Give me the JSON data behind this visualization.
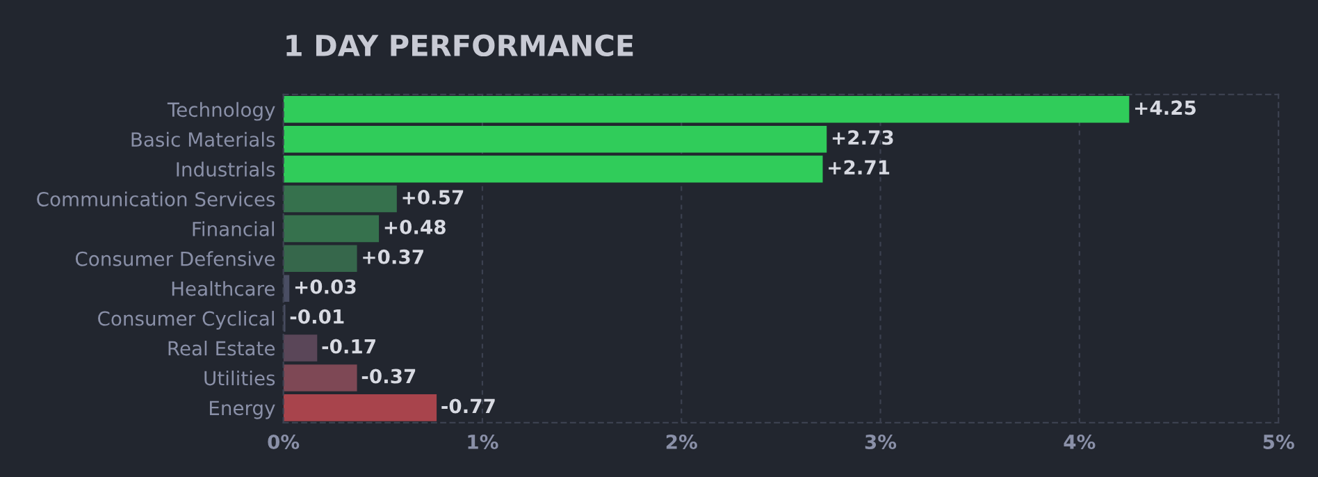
{
  "chart_data": {
    "type": "bar",
    "orientation": "horizontal",
    "title": "1 DAY PERFORMANCE",
    "categories": [
      "Technology",
      "Basic Materials",
      "Industrials",
      "Communication Services",
      "Financial",
      "Consumer Defensive",
      "Healthcare",
      "Consumer Cyclical",
      "Real Estate",
      "Utilities",
      "Energy"
    ],
    "values": [
      4.25,
      2.73,
      2.71,
      0.57,
      0.48,
      0.37,
      0.03,
      -0.01,
      -0.17,
      -0.37,
      -0.77
    ],
    "base": [
      0,
      0,
      0,
      0,
      0,
      0,
      0,
      0.01,
      0.17,
      0.37,
      0.77
    ],
    "value_labels": [
      "+4.25",
      "+2.73",
      "+2.71",
      "+0.57",
      "+0.48",
      "+0.37",
      "+0.03",
      "-0.01",
      "-0.17",
      "-0.37",
      "-0.77"
    ],
    "colors": [
      "#30cc5a",
      "#30cc5a",
      "#30cc5a",
      "#36714d",
      "#36714d",
      "#36674b",
      "#4a4e63",
      "#4a4e63",
      "#5a4658",
      "#7e4855",
      "#a8444c"
    ],
    "xlim": [
      0,
      5
    ],
    "xticks": [
      {
        "value": 0,
        "label": "0%"
      },
      {
        "value": 1,
        "label": "1%"
      },
      {
        "value": 2,
        "label": "2%"
      },
      {
        "value": 3,
        "label": "3%"
      },
      {
        "value": 4,
        "label": "4%"
      },
      {
        "value": 5,
        "label": "5%"
      }
    ],
    "grid": "x",
    "legend": false
  }
}
